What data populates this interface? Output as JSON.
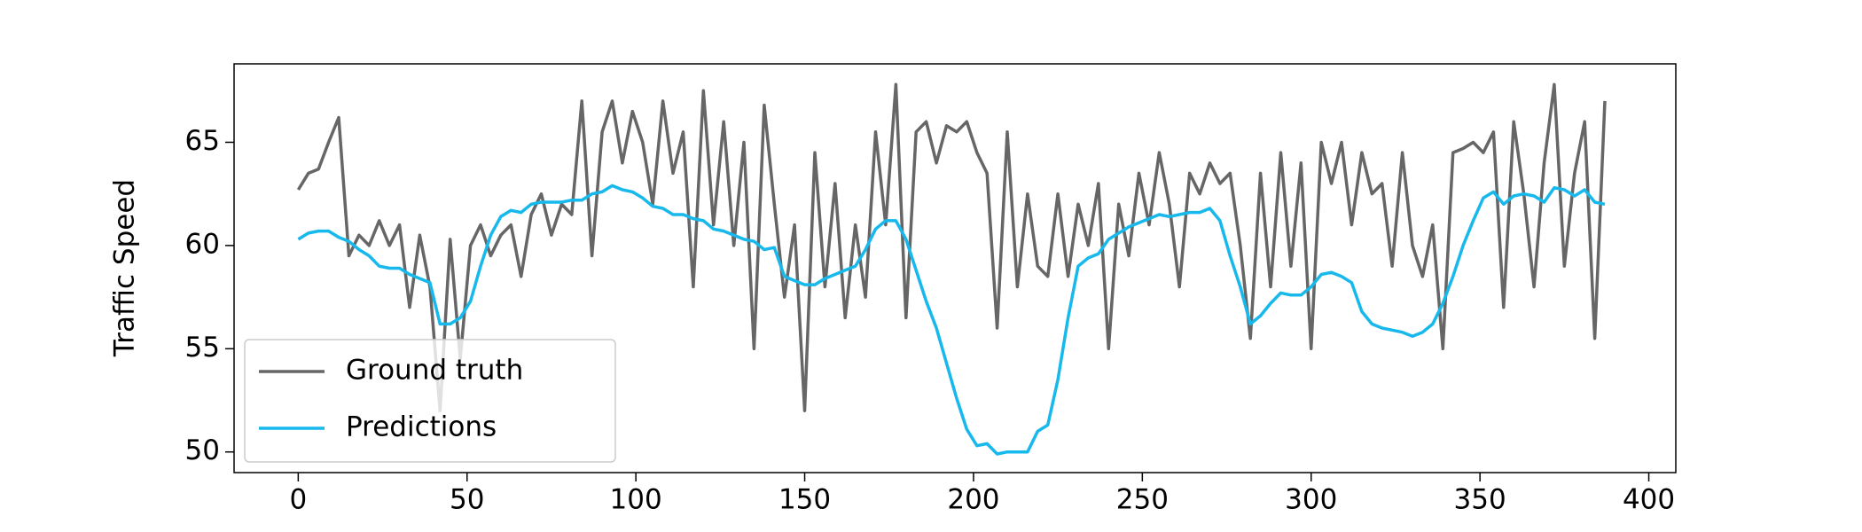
{
  "chart_data": {
    "type": "line",
    "ylabel": "Traffic Speed",
    "x": [
      0,
      3,
      6,
      9,
      12,
      15,
      18,
      21,
      24,
      27,
      30,
      33,
      36,
      39,
      42,
      45,
      48,
      51,
      54,
      57,
      60,
      63,
      66,
      69,
      72,
      75,
      78,
      81,
      84,
      87,
      90,
      93,
      96,
      99,
      102,
      105,
      108,
      111,
      114,
      117,
      120,
      123,
      126,
      129,
      132,
      135,
      138,
      141,
      144,
      147,
      150,
      153,
      156,
      159,
      162,
      165,
      168,
      171,
      174,
      177,
      180,
      183,
      186,
      189,
      192,
      195,
      198,
      201,
      204,
      207,
      210,
      213,
      216,
      219,
      222,
      225,
      228,
      231,
      234,
      237,
      240,
      243,
      246,
      249,
      252,
      255,
      258,
      261,
      264,
      267,
      270,
      273,
      276,
      279,
      282,
      285,
      288,
      291,
      294,
      297,
      300,
      303,
      306,
      309,
      312,
      315,
      318,
      321,
      324,
      327,
      330,
      333,
      336,
      339,
      342,
      345,
      348,
      351,
      354,
      357,
      360,
      363,
      366,
      369,
      372,
      375,
      378,
      381,
      384,
      387
    ],
    "series": [
      {
        "name": "Ground truth",
        "color": "#666666",
        "values": [
          62.7,
          63.5,
          63.7,
          65.0,
          66.2,
          59.5,
          60.5,
          60.0,
          61.2,
          60.0,
          61.0,
          57.0,
          60.5,
          58.0,
          52.0,
          60.3,
          54.5,
          60.0,
          61.0,
          59.5,
          60.5,
          61.0,
          58.5,
          61.5,
          62.5,
          60.5,
          62.0,
          61.5,
          67.0,
          59.5,
          65.5,
          67.0,
          64.0,
          66.5,
          65.0,
          62.0,
          67.0,
          63.5,
          65.5,
          58.0,
          67.5,
          61.0,
          66.0,
          60.0,
          65.0,
          55.0,
          66.8,
          62.0,
          57.5,
          61.0,
          52.0,
          64.5,
          58.0,
          63.0,
          56.5,
          61.0,
          57.5,
          65.5,
          61.0,
          67.8,
          56.5,
          65.5,
          66.0,
          64.0,
          65.8,
          65.5,
          66.0,
          64.5,
          63.5,
          56.0,
          65.5,
          58.0,
          62.5,
          59.0,
          58.5,
          62.5,
          58.5,
          62.0,
          60.0,
          63.0,
          55.0,
          62.0,
          59.5,
          63.5,
          61.0,
          64.5,
          62.0,
          58.0,
          63.5,
          62.5,
          64.0,
          63.0,
          63.5,
          60.0,
          55.5,
          63.5,
          58.0,
          64.5,
          59.0,
          64.0,
          55.0,
          65.0,
          63.0,
          65.0,
          61.0,
          64.5,
          62.5,
          63.0,
          59.0,
          64.5,
          60.0,
          58.5,
          61.0,
          55.0,
          64.5,
          64.7,
          65.0,
          64.5,
          65.5,
          57.0,
          66.0,
          62.5,
          58.0,
          64.0,
          67.8,
          59.0,
          63.5,
          66.0,
          55.5,
          67.0
        ]
      },
      {
        "name": "Predictions",
        "color": "#17b8ec",
        "values": [
          60.3,
          60.6,
          60.7,
          60.7,
          60.4,
          60.2,
          59.8,
          59.5,
          59.0,
          58.9,
          58.9,
          58.6,
          58.4,
          58.2,
          56.2,
          56.2,
          56.5,
          57.3,
          59.0,
          60.5,
          61.4,
          61.7,
          61.6,
          62.0,
          62.1,
          62.1,
          62.1,
          62.2,
          62.2,
          62.5,
          62.6,
          62.9,
          62.7,
          62.6,
          62.3,
          61.9,
          61.8,
          61.5,
          61.5,
          61.3,
          61.2,
          60.8,
          60.7,
          60.5,
          60.3,
          60.2,
          59.8,
          59.9,
          58.5,
          58.3,
          58.1,
          58.1,
          58.4,
          58.6,
          58.8,
          59.0,
          59.8,
          60.8,
          61.2,
          61.2,
          60.3,
          58.8,
          57.3,
          56.0,
          54.3,
          52.6,
          51.1,
          50.3,
          50.4,
          49.9,
          50.0,
          50.0,
          50.0,
          51.0,
          51.3,
          53.5,
          56.5,
          59.0,
          59.4,
          59.6,
          60.3,
          60.6,
          60.9,
          61.1,
          61.3,
          61.5,
          61.4,
          61.5,
          61.6,
          61.6,
          61.8,
          61.2,
          59.5,
          58.0,
          56.2,
          56.6,
          57.2,
          57.7,
          57.6,
          57.6,
          58.0,
          58.6,
          58.7,
          58.5,
          58.2,
          56.8,
          56.2,
          56.0,
          55.9,
          55.8,
          55.6,
          55.8,
          56.2,
          57.2,
          58.5,
          60.0,
          61.2,
          62.3,
          62.6,
          62.0,
          62.4,
          62.5,
          62.4,
          62.1,
          62.8,
          62.7,
          62.4,
          62.7,
          62.1,
          62.0
        ]
      }
    ],
    "xlim": [
      -19,
      408
    ],
    "ylim": [
      49.0,
      68.8
    ],
    "xticks": [
      0,
      50,
      100,
      150,
      200,
      250,
      300,
      350,
      400
    ],
    "yticks": [
      50,
      55,
      60,
      65
    ],
    "legend": "lower left"
  }
}
